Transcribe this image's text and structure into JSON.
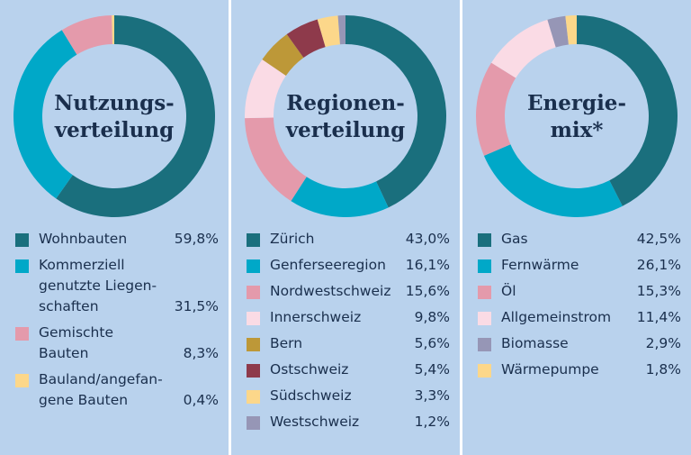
{
  "chart_data": [
    {
      "type": "donut",
      "title_lines": [
        "Nutzungs-",
        "verteilung"
      ],
      "unit": "%",
      "slices": [
        {
          "lines": [
            "Wohnbauten"
          ],
          "value": 59.8,
          "display": "59,8%",
          "color": "#1a6f7d"
        },
        {
          "lines": [
            "Kommerziell",
            "genutzte Liegen-",
            "schaften"
          ],
          "value": 31.5,
          "display": "31,5%",
          "color": "#00a8c8"
        },
        {
          "lines": [
            "Gemischte",
            "Bauten"
          ],
          "value": 8.3,
          "display": "8,3%",
          "color": "#e49aab"
        },
        {
          "lines": [
            "Bauland/angefan-",
            "gene Bauten"
          ],
          "value": 0.4,
          "display": "0,4%",
          "color": "#fcd78a"
        }
      ]
    },
    {
      "type": "donut",
      "title_lines": [
        "Regionen-",
        "verteilung"
      ],
      "unit": "%",
      "slices": [
        {
          "lines": [
            "Zürich"
          ],
          "value": 43.0,
          "display": "43,0%",
          "color": "#1a6f7d"
        },
        {
          "lines": [
            "Genferseeregion"
          ],
          "value": 16.1,
          "display": "16,1%",
          "color": "#00a8c8"
        },
        {
          "lines": [
            "Nordwestschweiz"
          ],
          "value": 15.6,
          "display": "15,6%",
          "color": "#e49aab"
        },
        {
          "lines": [
            "Innerschweiz"
          ],
          "value": 9.8,
          "display": "9,8%",
          "color": "#fadbe5"
        },
        {
          "lines": [
            "Bern"
          ],
          "value": 5.6,
          "display": "5,6%",
          "color": "#bd9838"
        },
        {
          "lines": [
            "Ostschweiz"
          ],
          "value": 5.4,
          "display": "5,4%",
          "color": "#8e3a4b"
        },
        {
          "lines": [
            "Südschweiz"
          ],
          "value": 3.3,
          "display": "3,3%",
          "color": "#fcd78a"
        },
        {
          "lines": [
            "Westschweiz"
          ],
          "value": 1.2,
          "display": "1,2%",
          "color": "#9696b6"
        }
      ]
    },
    {
      "type": "donut",
      "title_lines": [
        "Energie-",
        "mix*"
      ],
      "unit": "%",
      "slices": [
        {
          "lines": [
            "Gas"
          ],
          "value": 42.5,
          "display": "42,5%",
          "color": "#1a6f7d"
        },
        {
          "lines": [
            "Fernwärme"
          ],
          "value": 26.1,
          "display": "26,1%",
          "color": "#00a8c8"
        },
        {
          "lines": [
            "Öl"
          ],
          "value": 15.3,
          "display": "15,3%",
          "color": "#e49aab"
        },
        {
          "lines": [
            "Allgemeinstrom"
          ],
          "value": 11.4,
          "display": "11,4%",
          "color": "#fadbe5"
        },
        {
          "lines": [
            "Biomasse"
          ],
          "value": 2.9,
          "display": "2,9%",
          "color": "#9696b6"
        },
        {
          "lines": [
            "Wärmepumpe"
          ],
          "value": 1.8,
          "display": "1,8%",
          "color": "#fcd78a"
        }
      ]
    }
  ]
}
